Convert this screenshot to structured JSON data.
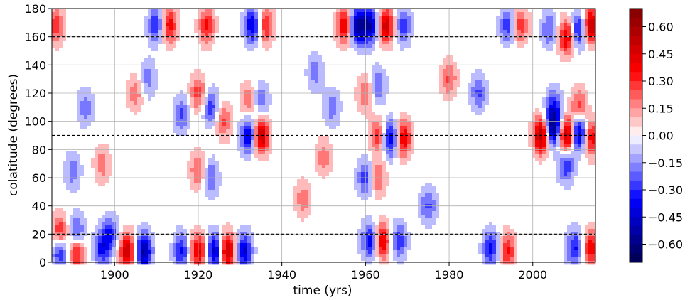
{
  "chart_data": {
    "type": "heatmap",
    "title": "",
    "xlabel": "time (yrs)",
    "ylabel": "colatitude (degrees)",
    "xlim": [
      1885,
      2015
    ],
    "ylim": [
      0,
      180
    ],
    "x_ticks": [
      1900,
      1920,
      1940,
      1960,
      1980,
      2000
    ],
    "x_tick_labels": [
      "1900",
      "1920",
      "1940",
      "1960",
      "1980",
      "2000"
    ],
    "y_ticks": [
      0,
      20,
      40,
      60,
      80,
      100,
      120,
      140,
      160,
      180
    ],
    "y_tick_labels": [
      "0",
      "20",
      "40",
      "60",
      "80",
      "100",
      "120",
      "140",
      "160",
      "180"
    ],
    "grid": true,
    "colormap": "seismic",
    "colormap_colors": [
      "#00004c",
      "#0000ff",
      "#ffffff",
      "#ff0000",
      "#800000"
    ],
    "colorbar": {
      "range": [
        -0.7,
        0.7
      ],
      "ticks": [
        0.6,
        0.45,
        0.3,
        0.15,
        0.0,
        -0.15,
        -0.3,
        -0.45,
        -0.6
      ],
      "tick_labels": [
        "0.60",
        "0.45",
        "0.30",
        "0.15",
        "0.00",
        "−0.15",
        "−0.30",
        "−0.45",
        "−0.60"
      ]
    },
    "reference_lines": [
      {
        "y": 160,
        "style": "dashed",
        "color": "#000000"
      },
      {
        "y": 90,
        "style": "dashed",
        "color": "#000000"
      },
      {
        "y": 20,
        "style": "dashed",
        "color": "#000000"
      }
    ],
    "features": [
      {
        "x": 1897,
        "y": 10,
        "value": -0.35
      },
      {
        "x": 1903,
        "y": 8,
        "value": 0.5
      },
      {
        "x": 1907,
        "y": 8,
        "value": -0.55
      },
      {
        "x": 1891,
        "y": 8,
        "value": 0.45
      },
      {
        "x": 1887,
        "y": 8,
        "value": -0.4
      },
      {
        "x": 1916,
        "y": 8,
        "value": -0.35
      },
      {
        "x": 1920,
        "y": 8,
        "value": 0.45
      },
      {
        "x": 1924,
        "y": 8,
        "value": -0.5
      },
      {
        "x": 1927,
        "y": 8,
        "value": 0.55
      },
      {
        "x": 1931,
        "y": 8,
        "value": -0.45
      },
      {
        "x": 1887,
        "y": 20,
        "value": 0.4
      },
      {
        "x": 1891,
        "y": 20,
        "value": -0.35
      },
      {
        "x": 1899,
        "y": 20,
        "value": -0.3
      },
      {
        "x": 1964,
        "y": 15,
        "value": 0.45
      },
      {
        "x": 1961,
        "y": 15,
        "value": -0.4
      },
      {
        "x": 1968,
        "y": 15,
        "value": -0.3
      },
      {
        "x": 1990,
        "y": 10,
        "value": -0.35
      },
      {
        "x": 1994,
        "y": 8,
        "value": 0.35
      },
      {
        "x": 2010,
        "y": 10,
        "value": -0.35
      },
      {
        "x": 2014,
        "y": 10,
        "value": 0.4
      },
      {
        "x": 1935,
        "y": 90,
        "value": 0.55
      },
      {
        "x": 1932,
        "y": 90,
        "value": -0.45
      },
      {
        "x": 1966,
        "y": 88,
        "value": -0.45
      },
      {
        "x": 1969,
        "y": 88,
        "value": 0.45
      },
      {
        "x": 1963,
        "y": 90,
        "value": 0.3
      },
      {
        "x": 2002,
        "y": 90,
        "value": 0.6
      },
      {
        "x": 2005,
        "y": 95,
        "value": -0.6
      },
      {
        "x": 2008,
        "y": 90,
        "value": 0.65
      },
      {
        "x": 2011,
        "y": 92,
        "value": -0.55
      },
      {
        "x": 2014,
        "y": 88,
        "value": 0.4
      },
      {
        "x": 1955,
        "y": 168,
        "value": 0.45
      },
      {
        "x": 1958,
        "y": 168,
        "value": -0.55
      },
      {
        "x": 1961,
        "y": 168,
        "value": -0.5
      },
      {
        "x": 1965,
        "y": 168,
        "value": 0.5
      },
      {
        "x": 1969,
        "y": 168,
        "value": -0.3
      },
      {
        "x": 1933,
        "y": 168,
        "value": -0.45
      },
      {
        "x": 1936,
        "y": 168,
        "value": 0.35
      },
      {
        "x": 1910,
        "y": 168,
        "value": -0.35
      },
      {
        "x": 1913,
        "y": 168,
        "value": 0.4
      },
      {
        "x": 1922,
        "y": 168,
        "value": 0.35
      },
      {
        "x": 1886,
        "y": 168,
        "value": 0.3
      },
      {
        "x": 2008,
        "y": 160,
        "value": 0.45
      },
      {
        "x": 2011,
        "y": 165,
        "value": -0.4
      },
      {
        "x": 2014,
        "y": 168,
        "value": 0.55
      },
      {
        "x": 2004,
        "y": 165,
        "value": -0.25
      },
      {
        "x": 1994,
        "y": 168,
        "value": -0.3
      },
      {
        "x": 1997,
        "y": 168,
        "value": 0.3
      },
      {
        "x": 1920,
        "y": 120,
        "value": 0.3
      },
      {
        "x": 1923,
        "y": 110,
        "value": -0.3
      },
      {
        "x": 1920,
        "y": 65,
        "value": 0.25
      },
      {
        "x": 1923,
        "y": 60,
        "value": -0.25
      },
      {
        "x": 1916,
        "y": 105,
        "value": -0.25
      },
      {
        "x": 1926,
        "y": 100,
        "value": 0.25
      },
      {
        "x": 1935,
        "y": 115,
        "value": -0.22
      },
      {
        "x": 1932,
        "y": 115,
        "value": 0.22
      },
      {
        "x": 1960,
        "y": 60,
        "value": -0.3
      },
      {
        "x": 1963,
        "y": 60,
        "value": 0.25
      },
      {
        "x": 1960,
        "y": 120,
        "value": 0.25
      },
      {
        "x": 1963,
        "y": 125,
        "value": -0.25
      },
      {
        "x": 1975,
        "y": 40,
        "value": -0.25
      },
      {
        "x": 1980,
        "y": 130,
        "value": 0.25
      },
      {
        "x": 1987,
        "y": 120,
        "value": -0.25
      },
      {
        "x": 2005,
        "y": 110,
        "value": -0.3
      },
      {
        "x": 2008,
        "y": 70,
        "value": -0.35
      },
      {
        "x": 2011,
        "y": 110,
        "value": 0.3
      },
      {
        "x": 1893,
        "y": 110,
        "value": -0.2
      },
      {
        "x": 1897,
        "y": 70,
        "value": 0.2
      },
      {
        "x": 1890,
        "y": 65,
        "value": -0.2
      },
      {
        "x": 1905,
        "y": 120,
        "value": 0.2
      },
      {
        "x": 1908,
        "y": 130,
        "value": -0.2
      },
      {
        "x": 1945,
        "y": 45,
        "value": 0.2
      },
      {
        "x": 1948,
        "y": 135,
        "value": -0.2
      },
      {
        "x": 1950,
        "y": 75,
        "value": 0.2
      },
      {
        "x": 1952,
        "y": 110,
        "value": -0.2
      }
    ]
  }
}
